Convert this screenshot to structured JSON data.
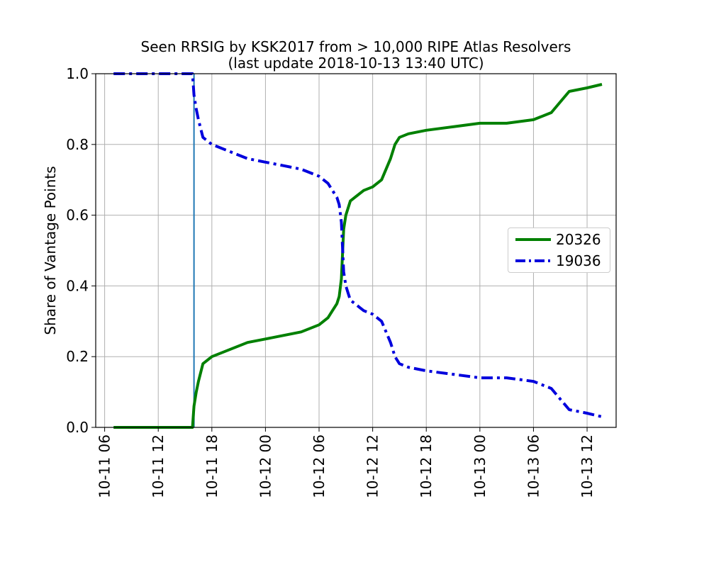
{
  "chart_data": {
    "type": "line",
    "title": "Seen RRSIG by KSK2017 from > 10,000 RIPE Atlas Resolvers",
    "subtitle": "(last update 2018-10-13 13:40 UTC)",
    "xlabel": "",
    "ylabel": "Share of Vantage Points",
    "xlim": [
      "2018-10-11 05:00",
      "2018-10-13 15:15"
    ],
    "ylim": [
      0.0,
      1.0
    ],
    "grid": true,
    "legend_position": "center-right",
    "x_ticks": [
      "10-11 06",
      "10-11 12",
      "10-11 18",
      "10-12 00",
      "10-12 06",
      "10-12 12",
      "10-12 18",
      "10-13 00",
      "10-13 06",
      "10-13 12"
    ],
    "x_tick_values": [
      "2018-10-11 06:00",
      "2018-10-11 12:00",
      "2018-10-11 18:00",
      "2018-10-12 00:00",
      "2018-10-12 06:00",
      "2018-10-12 12:00",
      "2018-10-12 18:00",
      "2018-10-13 00:00",
      "2018-10-13 06:00",
      "2018-10-13 12:00"
    ],
    "y_ticks": [
      "0.0",
      "0.2",
      "0.4",
      "0.6",
      "0.8",
      "1.0"
    ],
    "y_tick_values": [
      0.0,
      0.2,
      0.4,
      0.6,
      0.8,
      1.0
    ],
    "vline_x": "2018-10-11 16:00",
    "vline_color": "#1f77b4",
    "series": [
      {
        "name": "20326",
        "color": "#008000",
        "style": "solid",
        "x": [
          "2018-10-11 07:00",
          "2018-10-11 10:00",
          "2018-10-11 13:00",
          "2018-10-11 15:50",
          "2018-10-11 16:00",
          "2018-10-11 16:15",
          "2018-10-11 16:30",
          "2018-10-11 17:00",
          "2018-10-11 18:00",
          "2018-10-11 20:00",
          "2018-10-11 22:00",
          "2018-10-12 00:00",
          "2018-10-12 02:00",
          "2018-10-12 04:00",
          "2018-10-12 06:00",
          "2018-10-12 07:00",
          "2018-10-12 07:30",
          "2018-10-12 08:00",
          "2018-10-12 08:15",
          "2018-10-12 08:30",
          "2018-10-12 08:45",
          "2018-10-12 09:00",
          "2018-10-12 09:30",
          "2018-10-12 10:00",
          "2018-10-12 11:00",
          "2018-10-12 12:00",
          "2018-10-12 13:00",
          "2018-10-12 14:00",
          "2018-10-12 14:30",
          "2018-10-12 15:00",
          "2018-10-12 16:00",
          "2018-10-12 18:00",
          "2018-10-12 21:00",
          "2018-10-13 00:00",
          "2018-10-13 03:00",
          "2018-10-13 06:00",
          "2018-10-13 08:00",
          "2018-10-13 09:00",
          "2018-10-13 10:00",
          "2018-10-13 12:00",
          "2018-10-13 13:40"
        ],
        "y": [
          0.0,
          0.0,
          0.0,
          0.0,
          0.06,
          0.1,
          0.13,
          0.18,
          0.2,
          0.22,
          0.24,
          0.25,
          0.26,
          0.27,
          0.29,
          0.31,
          0.33,
          0.35,
          0.37,
          0.42,
          0.56,
          0.6,
          0.64,
          0.65,
          0.67,
          0.68,
          0.7,
          0.76,
          0.8,
          0.82,
          0.83,
          0.84,
          0.85,
          0.86,
          0.86,
          0.87,
          0.89,
          0.92,
          0.95,
          0.96,
          0.97
        ]
      },
      {
        "name": "19036",
        "color": "#0000dd",
        "style": "dashdot",
        "x": [
          "2018-10-11 07:00",
          "2018-10-11 10:00",
          "2018-10-11 13:00",
          "2018-10-11 15:50",
          "2018-10-11 16:00",
          "2018-10-11 16:15",
          "2018-10-11 16:30",
          "2018-10-11 17:00",
          "2018-10-11 18:00",
          "2018-10-11 20:00",
          "2018-10-11 22:00",
          "2018-10-12 00:00",
          "2018-10-12 02:00",
          "2018-10-12 04:00",
          "2018-10-12 06:00",
          "2018-10-12 07:00",
          "2018-10-12 07:30",
          "2018-10-12 08:00",
          "2018-10-12 08:15",
          "2018-10-12 08:30",
          "2018-10-12 08:45",
          "2018-10-12 09:00",
          "2018-10-12 09:30",
          "2018-10-12 10:00",
          "2018-10-12 11:00",
          "2018-10-12 12:00",
          "2018-10-12 13:00",
          "2018-10-12 14:00",
          "2018-10-12 14:30",
          "2018-10-12 15:00",
          "2018-10-12 16:00",
          "2018-10-12 18:00",
          "2018-10-12 21:00",
          "2018-10-13 00:00",
          "2018-10-13 03:00",
          "2018-10-13 06:00",
          "2018-10-13 08:00",
          "2018-10-13 09:00",
          "2018-10-13 10:00",
          "2018-10-13 12:00",
          "2018-10-13 13:40"
        ],
        "y": [
          1.0,
          1.0,
          1.0,
          1.0,
          0.94,
          0.9,
          0.87,
          0.82,
          0.8,
          0.78,
          0.76,
          0.75,
          0.74,
          0.73,
          0.71,
          0.69,
          0.67,
          0.65,
          0.63,
          0.58,
          0.44,
          0.4,
          0.36,
          0.35,
          0.33,
          0.32,
          0.3,
          0.24,
          0.2,
          0.18,
          0.17,
          0.16,
          0.15,
          0.14,
          0.14,
          0.13,
          0.11,
          0.08,
          0.05,
          0.04,
          0.03
        ]
      }
    ]
  }
}
